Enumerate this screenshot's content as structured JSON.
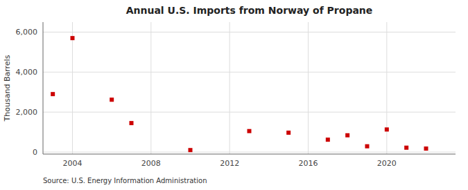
{
  "chart_data": {
    "type": "scatter",
    "title": "Annual U.S. Imports from Norway of Propane",
    "ylabel": "Thousand Barrels",
    "source": "Source: U.S. Energy Information Administration",
    "x": [
      2003,
      2004,
      2006,
      2007,
      2010,
      2013,
      2015,
      2017,
      2018,
      2019,
      2020,
      2021,
      2022
    ],
    "values": [
      2900,
      5700,
      2620,
      1450,
      100,
      1050,
      970,
      620,
      840,
      290,
      1130,
      220,
      175
    ],
    "color": "#cc0000",
    "marker": "square",
    "xlim": [
      2002.5,
      2023.5
    ],
    "xticks": [
      2004,
      2008,
      2012,
      2016,
      2020
    ],
    "ylim": [
      -100,
      6500
    ],
    "yticks": [
      0,
      {
        "value": 2000,
        "label": "2,000"
      },
      {
        "value": 4000,
        "label": "4,000"
      },
      {
        "value": 6000,
        "label": "6,000"
      }
    ],
    "grid": true
  }
}
